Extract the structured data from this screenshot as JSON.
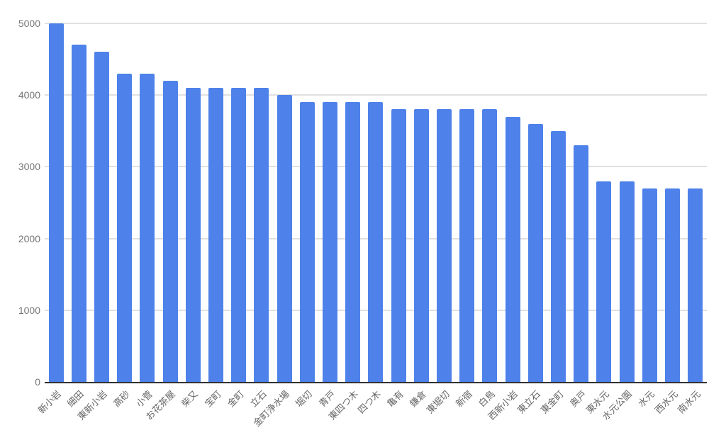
{
  "chart_data": {
    "type": "bar",
    "title": "",
    "xlabel": "",
    "ylabel": "",
    "categories": [
      "新小岩",
      "細田",
      "東新小岩",
      "高砂",
      "小菅",
      "お花茶屋",
      "柴又",
      "宝町",
      "金町",
      "立石",
      "金町浄水場",
      "堀切",
      "青戸",
      "東四つ木",
      "四つ木",
      "亀有",
      "鎌倉",
      "東堀切",
      "新宿",
      "白鳥",
      "西新小岩",
      "東立石",
      "東金町",
      "奥戸",
      "東水元",
      "水元公園",
      "水元",
      "西水元",
      "南水元"
    ],
    "values": [
      5000,
      4700,
      4600,
      4300,
      4300,
      4200,
      4100,
      4100,
      4100,
      4100,
      4000,
      3900,
      3900,
      3900,
      3900,
      3800,
      3800,
      3800,
      3800,
      3800,
      3700,
      3600,
      3500,
      3300,
      2800,
      2800,
      2700,
      2700,
      2700
    ],
    "ylim": [
      0,
      5000
    ],
    "yticks": [
      0,
      1000,
      2000,
      3000,
      4000,
      5000
    ],
    "grid": "horizontal",
    "legend": "none",
    "x_label_rotation_deg": -45,
    "colors": {
      "bar": "#4e82ea",
      "gridline": "#e0e0e0",
      "axis_line": "#333333",
      "y_tick_text": "#757575",
      "x_tick_text": "#666666",
      "background": "#ffffff"
    }
  }
}
